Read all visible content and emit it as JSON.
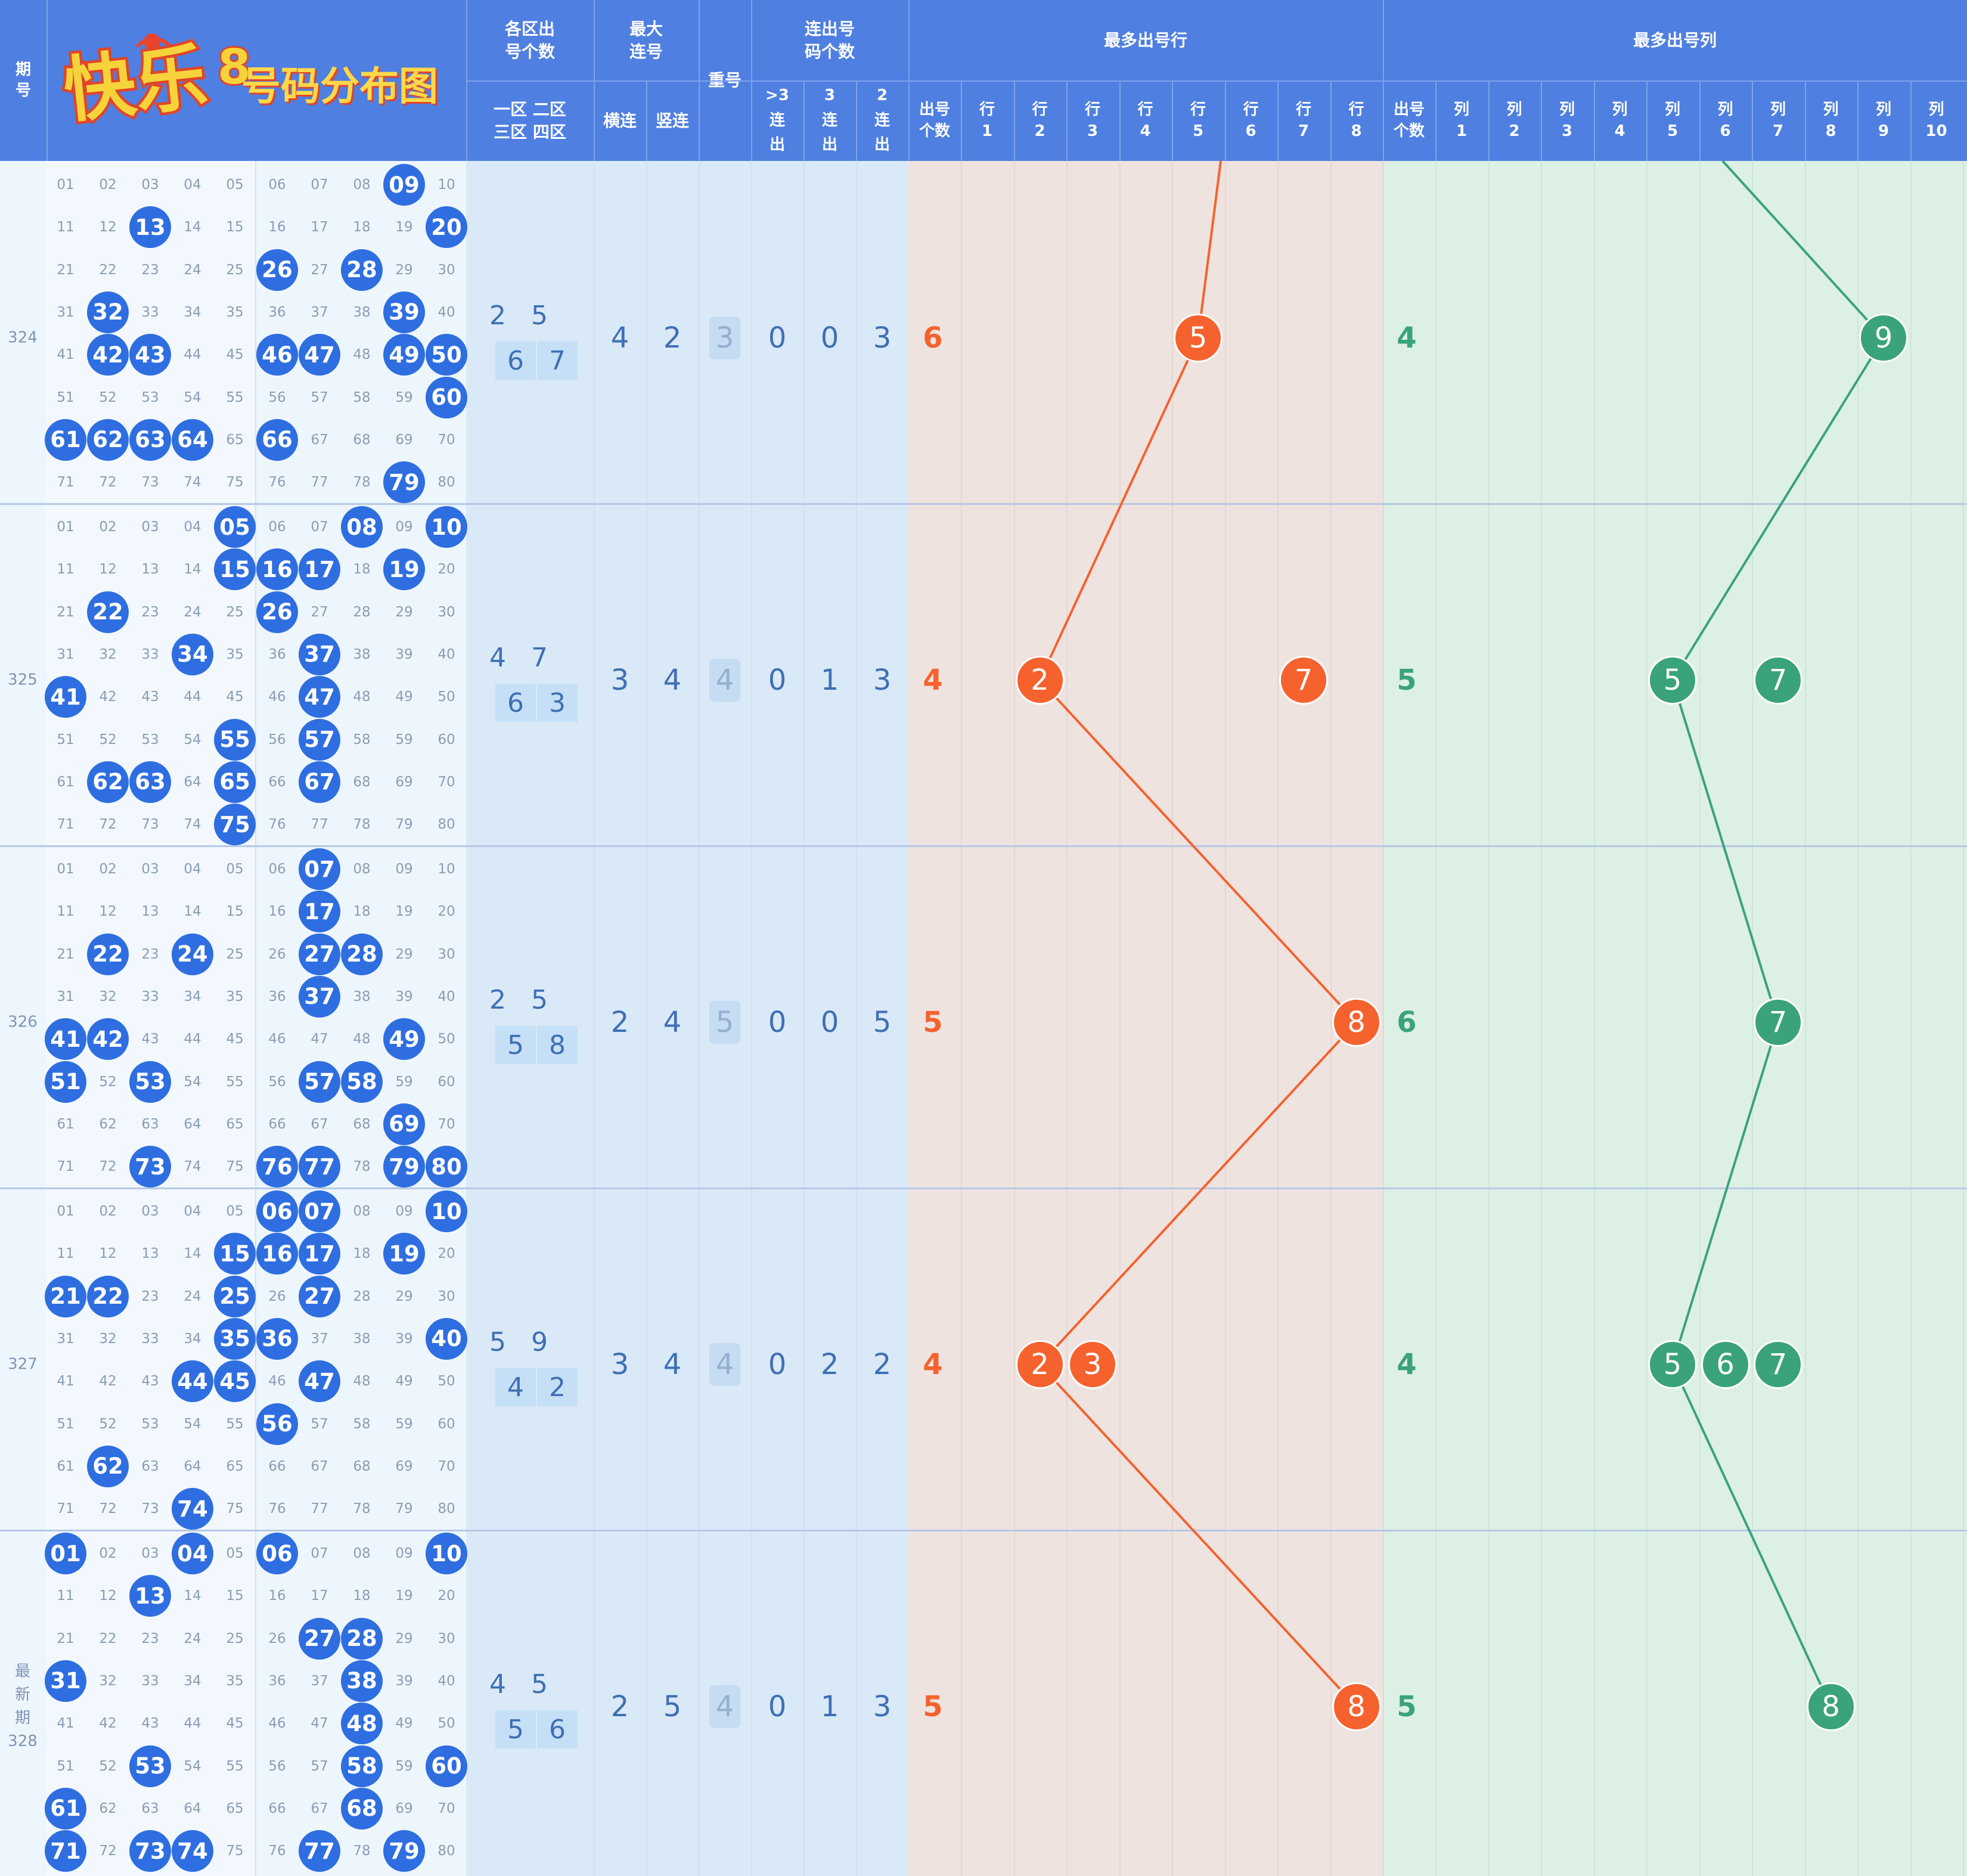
{
  "header": {
    "period": "期\n号",
    "zone_count": "各区出\n号个数",
    "zone_sub": "一区 二区\n三区 四区",
    "max_consec": "最大\n连号",
    "horiz": "横连",
    "vert": "竖连",
    "repeat": "重号",
    "consec_count": "连出号\n码个数",
    "gt3": ">3\n连\n出",
    "c3": "3\n连\n出",
    "c2": "2\n连\n出",
    "most_row": "最多出号行",
    "most_col": "最多出号列",
    "count_label": "出号\n个数",
    "row_labels": [
      "行\n1",
      "行\n2",
      "行\n3",
      "行\n4",
      "行\n5",
      "行\n6",
      "行\n7",
      "行\n8"
    ],
    "col_labels": [
      "列\n1",
      "列\n2",
      "列\n3",
      "列\n4",
      "列\n5",
      "列\n6",
      "列\n7",
      "列\n8",
      "列\n9",
      "列\n10"
    ]
  },
  "logo": {
    "brand": "快乐8",
    "subtitle": "号码分布图"
  },
  "colors": {
    "header_bg": "#4f7fe0",
    "ball_blue": "#2e6ee0",
    "orange": "#f5622e",
    "green": "#3aa37a"
  },
  "periods": [
    {
      "label": "324",
      "drawn": [
        9,
        13,
        20,
        26,
        28,
        32,
        39,
        42,
        43,
        46,
        47,
        49,
        50,
        60,
        61,
        62,
        63,
        64,
        66,
        79
      ],
      "zones": [
        "2",
        "5",
        "6",
        "7"
      ],
      "horiz": "4",
      "vert": "2",
      "repeat": "3",
      "gt3": "0",
      "c3": "0",
      "c2": "3",
      "row_count": "6",
      "row_balls": [
        5
      ],
      "col_count": "4",
      "col_balls": [
        9
      ]
    },
    {
      "label": "325",
      "drawn": [
        5,
        8,
        10,
        15,
        16,
        17,
        19,
        22,
        26,
        34,
        37,
        41,
        47,
        55,
        57,
        62,
        63,
        65,
        67,
        75
      ],
      "zones": [
        "4",
        "7",
        "6",
        "3"
      ],
      "horiz": "3",
      "vert": "4",
      "repeat": "4",
      "gt3": "0",
      "c3": "1",
      "c2": "3",
      "row_count": "4",
      "row_balls": [
        2,
        7
      ],
      "col_count": "5",
      "col_balls": [
        5,
        7
      ]
    },
    {
      "label": "326",
      "drawn": [
        7,
        17,
        22,
        24,
        27,
        28,
        37,
        41,
        42,
        49,
        51,
        53,
        57,
        58,
        69,
        73,
        76,
        77,
        79,
        80
      ],
      "zones": [
        "2",
        "5",
        "5",
        "8"
      ],
      "horiz": "2",
      "vert": "4",
      "repeat": "5",
      "gt3": "0",
      "c3": "0",
      "c2": "5",
      "row_count": "5",
      "row_balls": [
        8
      ],
      "col_count": "6",
      "col_balls": [
        7
      ]
    },
    {
      "label": "327",
      "drawn": [
        6,
        7,
        10,
        15,
        16,
        17,
        19,
        21,
        22,
        25,
        27,
        35,
        36,
        40,
        44,
        45,
        47,
        56,
        62,
        74
      ],
      "zones": [
        "5",
        "9",
        "4",
        "2"
      ],
      "horiz": "3",
      "vert": "4",
      "repeat": "4",
      "gt3": "0",
      "c3": "2",
      "c2": "2",
      "row_count": "4",
      "row_balls": [
        2,
        3
      ],
      "col_count": "4",
      "col_balls": [
        5,
        6,
        7
      ]
    },
    {
      "label": "最\n新\n期\n328",
      "drawn": [
        1,
        4,
        6,
        10,
        13,
        27,
        28,
        31,
        38,
        48,
        53,
        58,
        60,
        61,
        68,
        71,
        73,
        74,
        77,
        79
      ],
      "zones": [
        "4",
        "5",
        "5",
        "6"
      ],
      "horiz": "2",
      "vert": "5",
      "repeat": "4",
      "gt3": "0",
      "c3": "1",
      "c2": "3",
      "row_count": "5",
      "row_balls": [
        8
      ],
      "col_count": "5",
      "col_balls": [
        8
      ]
    }
  ],
  "trend": {
    "row_path": [
      5,
      2,
      8,
      2,
      8
    ],
    "col_path": [
      9,
      5,
      7,
      5,
      8
    ]
  }
}
